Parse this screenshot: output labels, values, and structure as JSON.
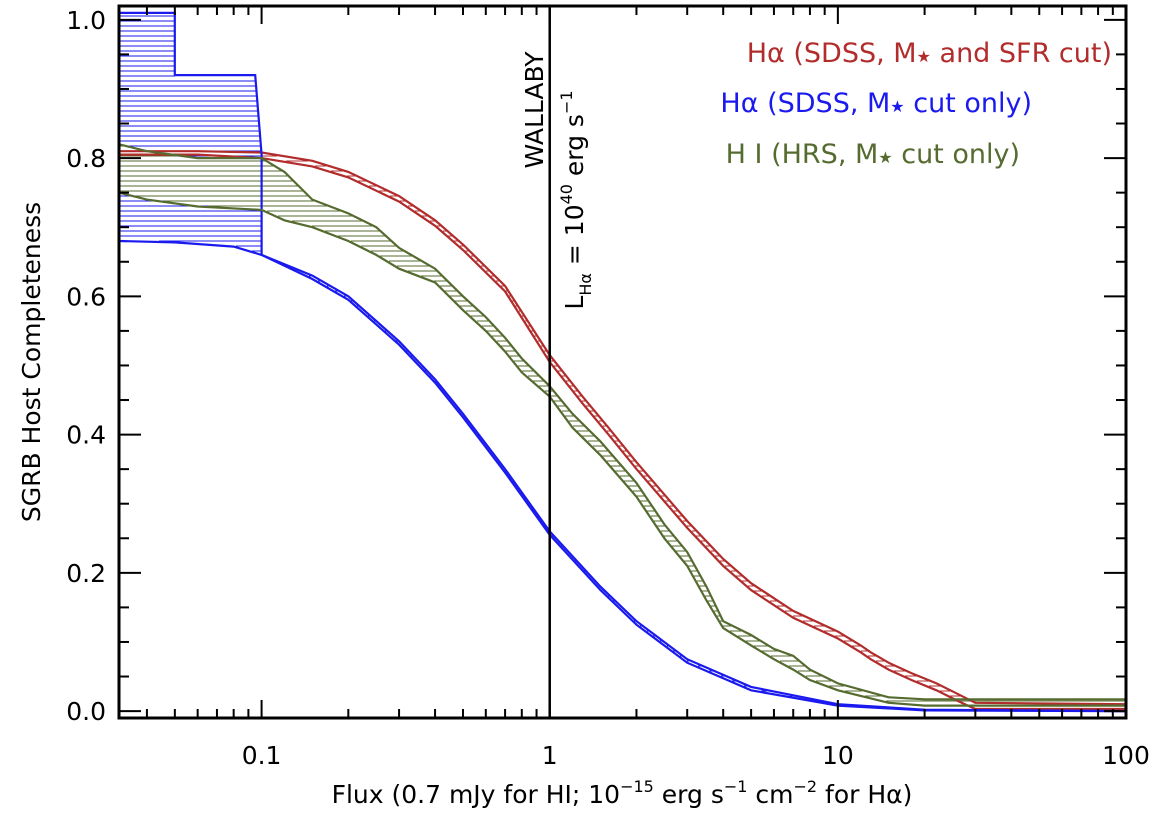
{
  "chart_data": {
    "type": "line",
    "xlabel": {
      "pre": "Flux (0.7 mJy for HI; 10",
      "e1": "−15",
      "mid": " erg s",
      "e2": "−1",
      "mid2": " cm",
      "e3": "−2",
      "post": " for Hα)"
    },
    "ylabel": "SGRB Host Completeness",
    "xscale": "log",
    "xlim": [
      0.032,
      100
    ],
    "ylim": [
      -0.01,
      1.02
    ],
    "xticks": [
      {
        "v": 0.1,
        "label": "0.1"
      },
      {
        "v": 1,
        "label": "1"
      },
      {
        "v": 10,
        "label": "10"
      },
      {
        "v": 100,
        "label": "100"
      }
    ],
    "yticks": [
      {
        "v": 0.0,
        "label": "0.0"
      },
      {
        "v": 0.2,
        "label": "0.2"
      },
      {
        "v": 0.4,
        "label": "0.4"
      },
      {
        "v": 0.6,
        "label": "0.6"
      },
      {
        "v": 0.8,
        "label": "0.8"
      },
      {
        "v": 1.0,
        "label": "1.0"
      }
    ],
    "vline": {
      "x": 1,
      "label": "WALLABY",
      "label2": {
        "pre": "L",
        "sub": "Hα",
        "mid": " = 10",
        "sup": "40",
        "post": " erg s",
        "sup2": "−1"
      }
    },
    "legend": [
      {
        "pre": "Hα (SDSS, M",
        "post": " and SFR cut)",
        "color": "#b22c2c"
      },
      {
        "pre": "Hα (SDSS, M",
        "post": " cut only)",
        "color": "#1a1aee"
      },
      {
        "pre": "H I (HRS, M",
        "post": " cut only)",
        "color": "#556b2f"
      }
    ],
    "series": [
      {
        "name": "Hα (SDSS, M★ and SFR cut)",
        "color": "#b22c2c",
        "upper": [
          [
            0.032,
            0.81
          ],
          [
            0.06,
            0.81
          ],
          [
            0.1,
            0.808
          ],
          [
            0.15,
            0.796
          ],
          [
            0.2,
            0.78
          ],
          [
            0.3,
            0.745
          ],
          [
            0.4,
            0.71
          ],
          [
            0.5,
            0.675
          ],
          [
            0.7,
            0.615
          ],
          [
            1,
            0.515
          ],
          [
            1.3,
            0.455
          ],
          [
            1.6,
            0.41
          ],
          [
            2,
            0.36
          ],
          [
            3,
            0.275
          ],
          [
            4,
            0.22
          ],
          [
            5,
            0.185
          ],
          [
            7,
            0.145
          ],
          [
            10,
            0.115
          ],
          [
            12,
            0.095
          ],
          [
            13,
            0.085
          ],
          [
            15,
            0.07
          ],
          [
            18,
            0.055
          ],
          [
            22,
            0.04
          ],
          [
            26,
            0.025
          ],
          [
            30,
            0.012
          ],
          [
            100,
            0.01
          ]
        ],
        "lower": [
          [
            0.032,
            0.805
          ],
          [
            0.06,
            0.805
          ],
          [
            0.1,
            0.8
          ],
          [
            0.15,
            0.788
          ],
          [
            0.2,
            0.772
          ],
          [
            0.3,
            0.737
          ],
          [
            0.4,
            0.702
          ],
          [
            0.5,
            0.667
          ],
          [
            0.7,
            0.607
          ],
          [
            1,
            0.505
          ],
          [
            1.3,
            0.445
          ],
          [
            1.6,
            0.4
          ],
          [
            2,
            0.35
          ],
          [
            3,
            0.265
          ],
          [
            4,
            0.21
          ],
          [
            5,
            0.175
          ],
          [
            7,
            0.135
          ],
          [
            10,
            0.105
          ],
          [
            12,
            0.085
          ],
          [
            13,
            0.075
          ],
          [
            15,
            0.06
          ],
          [
            18,
            0.045
          ],
          [
            22,
            0.03
          ],
          [
            26,
            0.015
          ],
          [
            30,
            0.003
          ],
          [
            100,
            0.003
          ]
        ]
      },
      {
        "name": "Hα (SDSS, M★ cut only)",
        "color": "#1a1aee",
        "upper": [
          [
            0.032,
            1.01
          ],
          [
            0.05,
            1.01
          ],
          [
            0.05,
            0.92
          ],
          [
            0.095,
            0.92
          ],
          [
            0.1,
            0.805
          ],
          [
            0.1,
            0.66
          ],
          [
            0.15,
            0.63
          ],
          [
            0.2,
            0.6
          ],
          [
            0.3,
            0.535
          ],
          [
            0.4,
            0.48
          ],
          [
            0.5,
            0.43
          ],
          [
            0.7,
            0.35
          ],
          [
            1,
            0.26
          ],
          [
            1.5,
            0.18
          ],
          [
            2,
            0.13
          ],
          [
            3,
            0.075
          ],
          [
            5,
            0.035
          ],
          [
            10,
            0.01
          ],
          [
            20,
            0.002
          ],
          [
            100,
            0.0
          ]
        ],
        "lower": [
          [
            0.032,
            0.68
          ],
          [
            0.05,
            0.678
          ],
          [
            0.08,
            0.672
          ],
          [
            0.1,
            0.66
          ],
          [
            0.15,
            0.625
          ],
          [
            0.2,
            0.595
          ],
          [
            0.3,
            0.53
          ],
          [
            0.4,
            0.475
          ],
          [
            0.5,
            0.425
          ],
          [
            0.7,
            0.345
          ],
          [
            1,
            0.255
          ],
          [
            1.5,
            0.175
          ],
          [
            2,
            0.125
          ],
          [
            3,
            0.07
          ],
          [
            5,
            0.03
          ],
          [
            10,
            0.008
          ],
          [
            20,
            0.001
          ],
          [
            100,
            0.0
          ]
        ]
      },
      {
        "name": "H I (HRS, M★ cut only)",
        "color": "#556b2f",
        "upper": [
          [
            0.032,
            0.82
          ],
          [
            0.04,
            0.81
          ],
          [
            0.06,
            0.8
          ],
          [
            0.1,
            0.8
          ],
          [
            0.12,
            0.78
          ],
          [
            0.15,
            0.74
          ],
          [
            0.2,
            0.72
          ],
          [
            0.25,
            0.7
          ],
          [
            0.3,
            0.67
          ],
          [
            0.4,
            0.64
          ],
          [
            0.5,
            0.6
          ],
          [
            0.6,
            0.57
          ],
          [
            0.7,
            0.54
          ],
          [
            0.8,
            0.51
          ],
          [
            1,
            0.47
          ],
          [
            1.2,
            0.43
          ],
          [
            1.5,
            0.39
          ],
          [
            2,
            0.33
          ],
          [
            2.5,
            0.27
          ],
          [
            3,
            0.23
          ],
          [
            3.5,
            0.18
          ],
          [
            4,
            0.13
          ],
          [
            5,
            0.11
          ],
          [
            6,
            0.09
          ],
          [
            7,
            0.08
          ],
          [
            8,
            0.06
          ],
          [
            10,
            0.04
          ],
          [
            15,
            0.02
          ],
          [
            20,
            0.017
          ],
          [
            100,
            0.017
          ]
        ],
        "lower": [
          [
            0.032,
            0.75
          ],
          [
            0.04,
            0.74
          ],
          [
            0.06,
            0.73
          ],
          [
            0.1,
            0.725
          ],
          [
            0.12,
            0.71
          ],
          [
            0.15,
            0.7
          ],
          [
            0.2,
            0.68
          ],
          [
            0.25,
            0.66
          ],
          [
            0.3,
            0.64
          ],
          [
            0.4,
            0.62
          ],
          [
            0.5,
            0.58
          ],
          [
            0.6,
            0.55
          ],
          [
            0.7,
            0.52
          ],
          [
            0.8,
            0.49
          ],
          [
            1,
            0.455
          ],
          [
            1.2,
            0.41
          ],
          [
            1.5,
            0.37
          ],
          [
            2,
            0.31
          ],
          [
            2.5,
            0.25
          ],
          [
            3,
            0.21
          ],
          [
            3.5,
            0.16
          ],
          [
            4,
            0.12
          ],
          [
            5,
            0.095
          ],
          [
            6,
            0.075
          ],
          [
            7,
            0.06
          ],
          [
            8,
            0.045
          ],
          [
            10,
            0.03
          ],
          [
            15,
            0.012
          ],
          [
            20,
            0.008
          ],
          [
            100,
            0.008
          ]
        ]
      }
    ]
  }
}
